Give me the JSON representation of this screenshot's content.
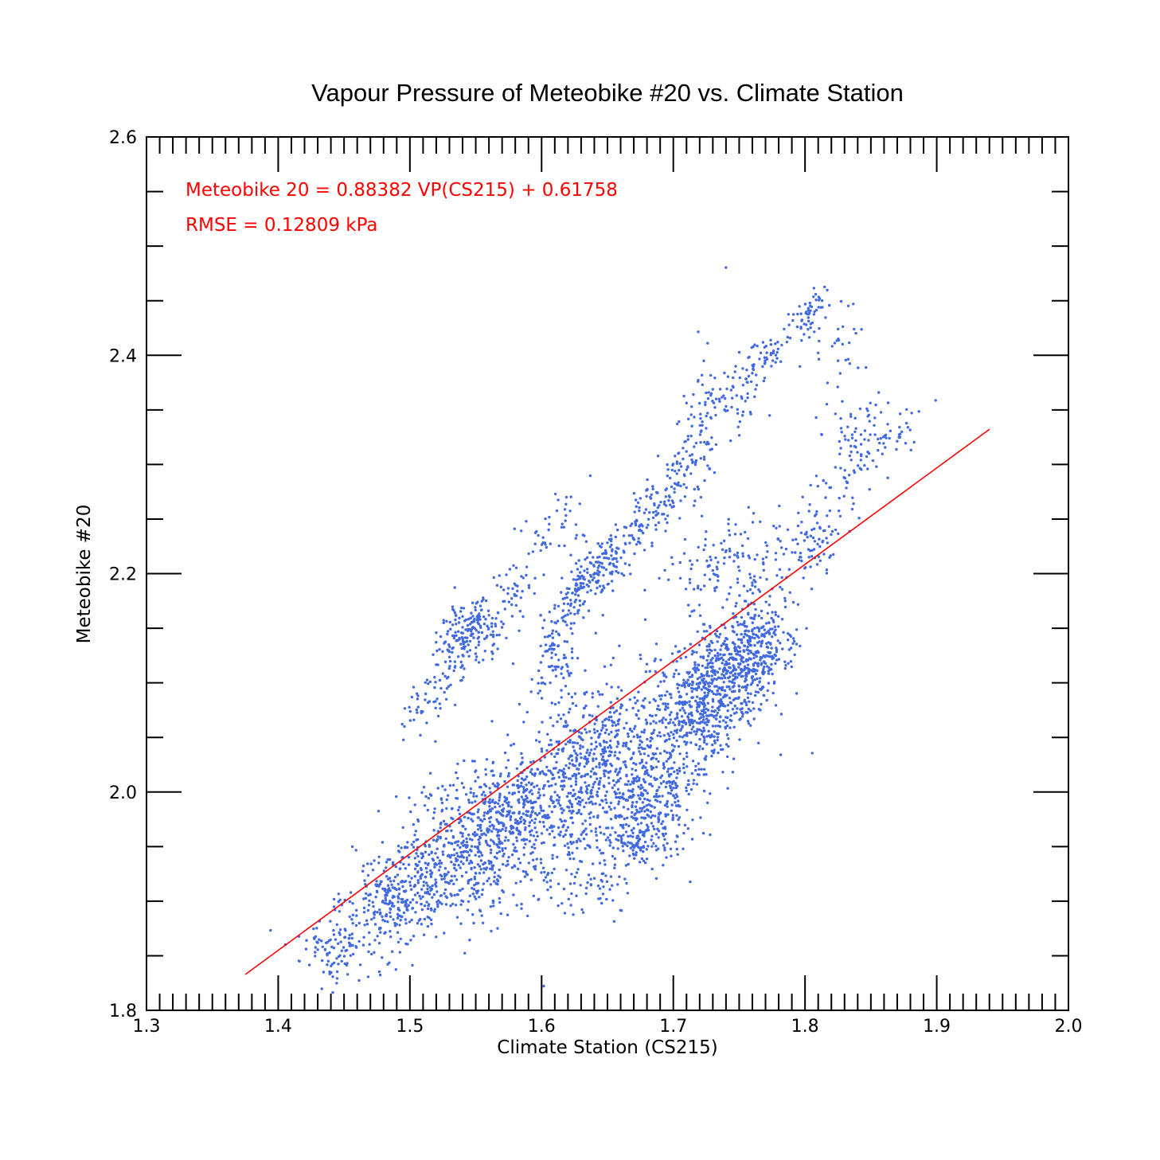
{
  "chart_data": {
    "type": "scatter",
    "title": "Vapour Pressure of Meteobike #20 vs. Climate Station",
    "xlabel": "Climate Station (CS215)",
    "ylabel": "Meteobike #20",
    "xlim": [
      1.3,
      2.0
    ],
    "ylim": [
      1.8,
      2.6
    ],
    "x_ticks": [
      "1.3",
      "1.4",
      "1.5",
      "1.6",
      "1.7",
      "1.8",
      "1.9",
      "2.0"
    ],
    "y_ticks": [
      "1.8",
      "2.0",
      "2.2",
      "2.4",
      "2.6"
    ],
    "grid": false,
    "point_color": "#4169e1",
    "fit_color": "#ff0000",
    "annotations": [
      "Meteobike 20 = 0.88382 VP(CS215) + 0.61758",
      "RMSE = 0.12809 kPa"
    ],
    "fit": {
      "slope": 0.88382,
      "intercept": 0.61758,
      "x_range": [
        1.375,
        1.94
      ]
    },
    "clusters": [
      {
        "cx": 1.56,
        "cy": 1.96,
        "sx": 0.04,
        "sy": 0.04,
        "n": 900,
        "rho": 0.55
      },
      {
        "cx": 1.49,
        "cy": 1.9,
        "sx": 0.025,
        "sy": 0.03,
        "n": 300,
        "rho": 0.5
      },
      {
        "cx": 1.44,
        "cy": 1.86,
        "sx": 0.012,
        "sy": 0.015,
        "n": 80,
        "rho": 0.3
      },
      {
        "cx": 1.64,
        "cy": 2.02,
        "sx": 0.03,
        "sy": 0.045,
        "n": 650,
        "rho": 0.3
      },
      {
        "cx": 1.68,
        "cy": 1.98,
        "sx": 0.02,
        "sy": 0.03,
        "n": 300,
        "rho": 0.3
      },
      {
        "cx": 1.73,
        "cy": 2.09,
        "sx": 0.025,
        "sy": 0.035,
        "n": 800,
        "rho": 0.45
      },
      {
        "cx": 1.76,
        "cy": 2.13,
        "sx": 0.015,
        "sy": 0.02,
        "n": 200,
        "rho": 0.2
      },
      {
        "cx": 1.55,
        "cy": 2.15,
        "sx": 0.012,
        "sy": 0.015,
        "n": 160,
        "rho": 0.3
      },
      {
        "cx": 1.53,
        "cy": 2.12,
        "sx": 0.01,
        "sy": 0.02,
        "n": 60,
        "rho": 0.5
      },
      {
        "cx": 1.51,
        "cy": 2.08,
        "sx": 0.01,
        "sy": 0.015,
        "n": 40,
        "rho": 0.5
      },
      {
        "cx": 1.58,
        "cy": 2.19,
        "sx": 0.01,
        "sy": 0.02,
        "n": 40,
        "rho": 0.3
      },
      {
        "cx": 1.61,
        "cy": 2.13,
        "sx": 0.008,
        "sy": 0.02,
        "n": 80,
        "rho": 0.3
      },
      {
        "cx": 1.63,
        "cy": 2.19,
        "sx": 0.01,
        "sy": 0.02,
        "n": 120,
        "rho": 0.5
      },
      {
        "cx": 1.65,
        "cy": 2.21,
        "sx": 0.01,
        "sy": 0.015,
        "n": 80,
        "rho": 0.5
      },
      {
        "cx": 1.61,
        "cy": 2.24,
        "sx": 0.01,
        "sy": 0.015,
        "n": 40,
        "rho": 0.3
      },
      {
        "cx": 1.68,
        "cy": 2.25,
        "sx": 0.01,
        "sy": 0.02,
        "n": 80,
        "rho": 0.6
      },
      {
        "cx": 1.7,
        "cy": 2.28,
        "sx": 0.008,
        "sy": 0.015,
        "n": 50,
        "rho": 0.5
      },
      {
        "cx": 1.72,
        "cy": 2.33,
        "sx": 0.01,
        "sy": 0.04,
        "n": 90,
        "rho": 0.4
      },
      {
        "cx": 1.75,
        "cy": 2.37,
        "sx": 0.01,
        "sy": 0.02,
        "n": 60,
        "rho": 0.5
      },
      {
        "cx": 1.77,
        "cy": 2.4,
        "sx": 0.008,
        "sy": 0.01,
        "n": 40,
        "rho": 0.5
      },
      {
        "cx": 1.8,
        "cy": 2.43,
        "sx": 0.008,
        "sy": 0.01,
        "n": 40,
        "rho": 0.5
      },
      {
        "cx": 1.81,
        "cy": 2.45,
        "sx": 0.004,
        "sy": 0.01,
        "n": 20,
        "rho": 0.5
      },
      {
        "cx": 1.825,
        "cy": 2.4,
        "sx": 0.01,
        "sy": 0.02,
        "n": 30,
        "rho": 0.3
      },
      {
        "cx": 1.84,
        "cy": 2.32,
        "sx": 0.012,
        "sy": 0.025,
        "n": 80,
        "rho": 0.4
      },
      {
        "cx": 1.87,
        "cy": 2.33,
        "sx": 0.01,
        "sy": 0.015,
        "n": 30,
        "rho": 0.4
      },
      {
        "cx": 1.81,
        "cy": 2.24,
        "sx": 0.012,
        "sy": 0.025,
        "n": 80,
        "rho": 0.5
      },
      {
        "cx": 1.78,
        "cy": 2.21,
        "sx": 0.012,
        "sy": 0.02,
        "n": 50,
        "rho": 0.4
      },
      {
        "cx": 1.75,
        "cy": 2.22,
        "sx": 0.015,
        "sy": 0.02,
        "n": 60,
        "rho": 0.3
      },
      {
        "cx": 1.72,
        "cy": 2.2,
        "sx": 0.015,
        "sy": 0.025,
        "n": 50,
        "rho": 0.3
      },
      {
        "cx": 1.63,
        "cy": 1.91,
        "sx": 0.015,
        "sy": 0.012,
        "n": 40,
        "rho": 0.2
      },
      {
        "cx": 1.67,
        "cy": 1.95,
        "sx": 0.01,
        "sy": 0.012,
        "n": 40,
        "rho": 0.3
      }
    ]
  }
}
